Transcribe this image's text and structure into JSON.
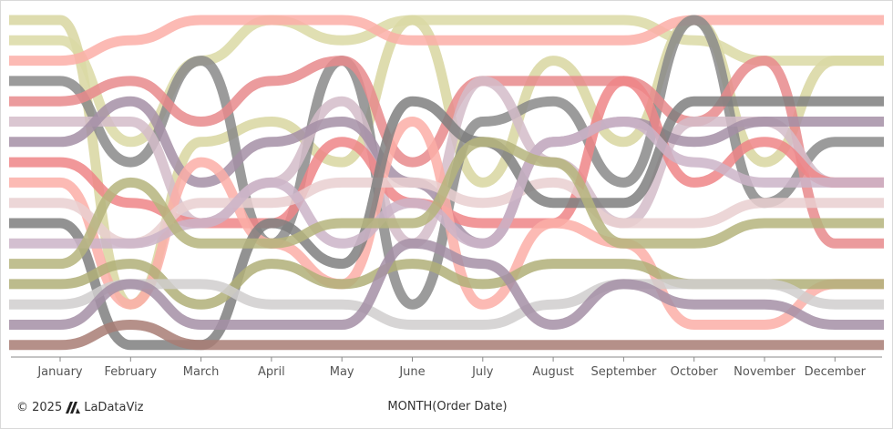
{
  "footer": {
    "copyright": "© 2025",
    "brand": "LaDataViz"
  },
  "chart_data": {
    "type": "bump",
    "xlabel": "MONTH(Order Date)",
    "categories": [
      "January",
      "February",
      "March",
      "April",
      "May",
      "June",
      "July",
      "August",
      "September",
      "October",
      "November",
      "December"
    ],
    "rank_range": [
      1,
      17
    ],
    "grid": false,
    "series": [
      {
        "color": "#d8d6a0",
        "ranks": [
          1,
          15,
          7,
          6,
          8,
          1,
          9,
          3,
          7,
          1,
          8,
          3
        ]
      },
      {
        "color": "#dbd9a5",
        "ranks": [
          2,
          7,
          3,
          1,
          2,
          1,
          1,
          1,
          1,
          2,
          3,
          3
        ]
      },
      {
        "color": "#fcaea7",
        "ranks": [
          3,
          2,
          1,
          1,
          1,
          2,
          2,
          2,
          2,
          1,
          1,
          1
        ]
      },
      {
        "color": "#8a8a8a",
        "ranks": [
          4,
          8,
          3,
          12,
          3,
          15,
          6,
          5,
          9,
          1,
          10,
          7
        ]
      },
      {
        "color": "#e88a8c",
        "ranks": [
          5,
          4,
          6,
          4,
          3,
          8,
          4,
          4,
          4,
          6,
          3,
          12
        ]
      },
      {
        "color": "#d4bcc9",
        "ranks": [
          6,
          6,
          11,
          9,
          5,
          12,
          4,
          8,
          11,
          6,
          6,
          9
        ]
      },
      {
        "color": "#a58fa6",
        "ranks": [
          7,
          5,
          9,
          7,
          6,
          9,
          12,
          7,
          6,
          7,
          6,
          6
        ]
      },
      {
        "color": "#ee8587",
        "ranks": [
          8,
          10,
          11,
          11,
          7,
          10,
          11,
          11,
          4,
          9,
          7,
          9
        ]
      },
      {
        "color": "#fcaea7",
        "ranks": [
          9,
          15,
          8,
          12,
          14,
          6,
          15,
          11,
          12,
          16,
          16,
          14
        ]
      },
      {
        "color": "#e9cfd0",
        "ranks": [
          10,
          12,
          10,
          10,
          9,
          9,
          10,
          9,
          11,
          11,
          10,
          10
        ]
      },
      {
        "color": "#7f7f7f",
        "ranks": [
          11,
          17,
          17,
          11,
          13,
          5,
          7,
          10,
          10,
          5,
          5,
          5
        ]
      },
      {
        "color": "#cbb4c8",
        "ranks": [
          12,
          12,
          11,
          9,
          12,
          10,
          12,
          7,
          6,
          8,
          9,
          9
        ]
      },
      {
        "color": "#b5b47d",
        "ranks": [
          13,
          9,
          12,
          12,
          11,
          11,
          7,
          8,
          12,
          12,
          11,
          11
        ]
      },
      {
        "color": "#b0af78",
        "ranks": [
          14,
          13,
          15,
          13,
          14,
          13,
          14,
          13,
          13,
          14,
          14,
          14
        ]
      },
      {
        "color": "#d0cece",
        "ranks": [
          15,
          14,
          14,
          15,
          15,
          16,
          16,
          15,
          14,
          14,
          14,
          15
        ]
      },
      {
        "color": "#a58fa6",
        "ranks": [
          16,
          14,
          16,
          16,
          16,
          12,
          13,
          16,
          14,
          15,
          15,
          16
        ]
      },
      {
        "color": "#a87c74",
        "ranks": [
          17,
          16,
          17,
          17,
          17,
          17,
          17,
          17,
          17,
          17,
          17,
          17
        ]
      }
    ]
  }
}
